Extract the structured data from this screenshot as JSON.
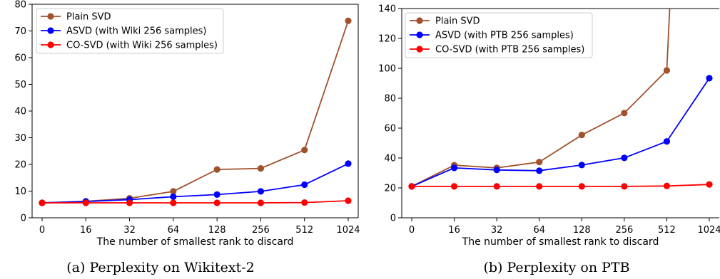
{
  "chart_data": [
    {
      "type": "line",
      "caption": "(a) Perplexity on Wikitext-2",
      "xlabel": "The number of smallest rank to discard",
      "ylabel": "",
      "categories": [
        "0",
        "16",
        "32",
        "64",
        "128",
        "256",
        "512",
        "1024"
      ],
      "ylim": [
        0,
        80
      ],
      "yticks": [
        0,
        10,
        20,
        30,
        40,
        50,
        60,
        70,
        80
      ],
      "legend_position": "top-left",
      "grid": false,
      "series": [
        {
          "name": "Plain SVD",
          "color": "#a0522d",
          "values": [
            5.6,
            6.2,
            7.3,
            9.9,
            18.1,
            18.5,
            25.4,
            73.8
          ]
        },
        {
          "name": "ASVD (with Wiki 256 samples)",
          "color": "#0000ff",
          "values": [
            5.6,
            6.1,
            6.8,
            7.9,
            8.7,
            9.9,
            12.4,
            20.3
          ]
        },
        {
          "name": "CO-SVD (with Wiki 256 samples)",
          "color": "#ff0000",
          "values": [
            5.6,
            5.6,
            5.6,
            5.6,
            5.6,
            5.6,
            5.7,
            6.4
          ]
        }
      ]
    },
    {
      "type": "line",
      "caption": "(b) Perplexity on PTB",
      "xlabel": "The number of smallest rank to discard",
      "ylabel": "",
      "categories": [
        "0",
        "16",
        "32",
        "64",
        "128",
        "256",
        "512",
        "1024"
      ],
      "ylim": [
        0,
        140
      ],
      "yticks": [
        0,
        20,
        40,
        60,
        80,
        100,
        120,
        140
      ],
      "legend_position": "top-left",
      "grid": false,
      "series": [
        {
          "name": "Plain SVD",
          "color": "#a0522d",
          "values": [
            21,
            35.2,
            33.4,
            37.3,
            55.4,
            70.1,
            98.6,
            null
          ],
          "overflow_after_index": 6
        },
        {
          "name": "ASVD (with PTB 256 samples)",
          "color": "#0000ff",
          "values": [
            21,
            33.4,
            32,
            31.5,
            35.3,
            40.1,
            51.1,
            93.4
          ]
        },
        {
          "name": "CO-SVD (with PTB 256 samples)",
          "color": "#ff0000",
          "values": [
            21,
            21,
            21,
            21,
            21,
            21,
            21.3,
            22.3
          ]
        }
      ]
    }
  ]
}
